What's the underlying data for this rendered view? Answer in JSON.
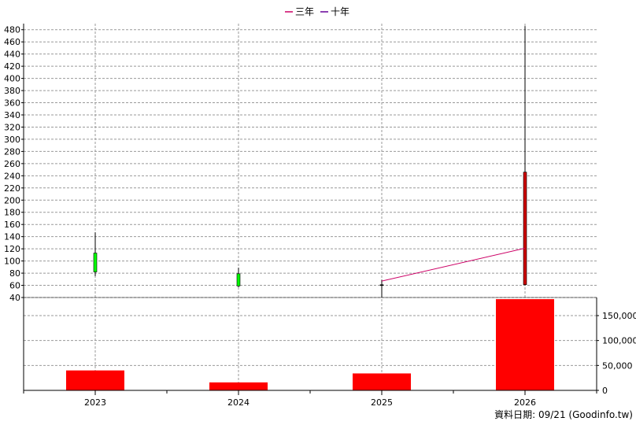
{
  "legend": [
    {
      "label": "三年",
      "color": "#cc0066"
    },
    {
      "label": "十年",
      "color": "#660099"
    }
  ],
  "footer": {
    "date_note": "資料日期: 09/21  (Goodinfo.tw)"
  },
  "chart_data": {
    "type": "candlestick+bar",
    "categories": [
      "2023",
      "2024",
      "2025",
      "2026"
    ],
    "price": {
      "ylim": [
        40,
        490
      ],
      "yticks": [
        40,
        60,
        80,
        100,
        120,
        140,
        160,
        180,
        200,
        220,
        240,
        260,
        280,
        300,
        320,
        340,
        360,
        380,
        400,
        420,
        440,
        460,
        480
      ],
      "candles": [
        {
          "x": "2023",
          "open": 82,
          "close": 113,
          "high": 147,
          "low": 75,
          "color": "#00ff00"
        },
        {
          "x": "2024",
          "open": 59,
          "close": 79,
          "high": 89,
          "low": 57,
          "color": "#00ff00"
        },
        {
          "x": "2025",
          "open": 60,
          "close": 61,
          "high": 69,
          "low": 40,
          "color": "#000000"
        },
        {
          "x": "2026",
          "open": 61,
          "close": 246,
          "high": 486,
          "low": 60,
          "color": "#cc0000"
        }
      ],
      "moving_averages": [
        {
          "name": "三年",
          "color": "#cc0066",
          "points": [
            {
              "x": "2025",
              "y": 67
            },
            {
              "x": "2026",
              "y": 121
            }
          ]
        }
      ]
    },
    "volume": {
      "ylim": [
        0,
        180000
      ],
      "yticks": [
        0,
        50000,
        100000,
        150000
      ],
      "ytick_labels": [
        "0",
        "50,000",
        "100,000",
        "150,000"
      ],
      "values": [
        40000,
        16000,
        34000,
        183000
      ],
      "color": "#ff0000"
    },
    "grid": true
  }
}
